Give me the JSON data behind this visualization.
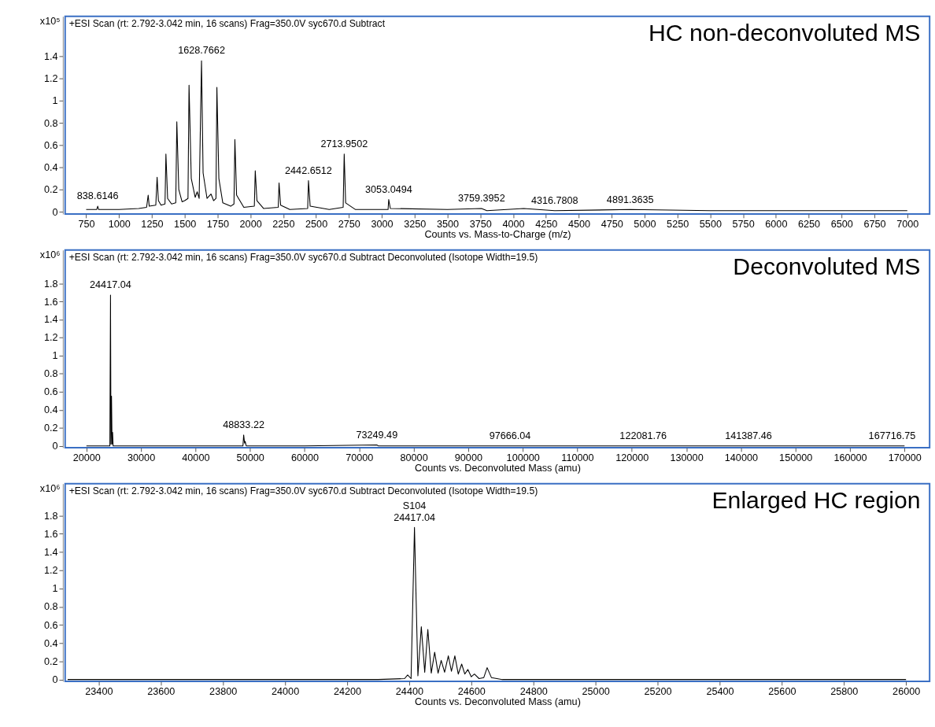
{
  "chart_data": [
    {
      "type": "line",
      "title": "HC non-deconvoluted MS",
      "subtitle": "+ESI Scan (rt: 2.792-3.042 min, 16 scans) Frag=350.0V syc670.d  Subtract",
      "xlabel": "Counts vs. Mass-to-Charge (m/z)",
      "ylabel": "x10⁵",
      "xlim": [
        590,
        7170
      ],
      "ylim": [
        -0.02,
        1.76
      ],
      "xticks": [
        750,
        1000,
        1250,
        1500,
        1750,
        2000,
        2250,
        2500,
        2750,
        3000,
        3250,
        3500,
        3750,
        4000,
        4250,
        4500,
        4750,
        5000,
        5250,
        5500,
        5750,
        6000,
        6250,
        6500,
        6750,
        7000
      ],
      "yticks": [
        0,
        0.2,
        0.4,
        0.6,
        0.8,
        1,
        1.2,
        1.4
      ],
      "series": [
        {
          "color": "#000000",
          "x": [
            750,
            830,
            838,
            845,
            1000,
            1150,
            1210,
            1222,
            1230,
            1280,
            1290,
            1300,
            1320,
            1350,
            1357,
            1370,
            1400,
            1432,
            1440,
            1455,
            1480,
            1500,
            1525,
            1533,
            1550,
            1580,
            1595,
            1610,
            1628,
            1640,
            1670,
            1700,
            1720,
            1738,
            1745,
            1760,
            1790,
            1850,
            1875,
            1882,
            1895,
            1950,
            2030,
            2037,
            2050,
            2100,
            2212,
            2218,
            2230,
            2300,
            2436,
            2442,
            2455,
            2600,
            2706,
            2714,
            2725,
            2800,
            3048,
            3053,
            3065,
            3500,
            3759,
            3800,
            4080,
            4316,
            4891,
            5500,
            7000
          ],
          "values": [
            0.02,
            0.02,
            0.05,
            0.02,
            0.02,
            0.03,
            0.04,
            0.15,
            0.05,
            0.06,
            0.31,
            0.1,
            0.06,
            0.07,
            0.52,
            0.12,
            0.07,
            0.08,
            0.81,
            0.2,
            0.09,
            0.1,
            0.12,
            1.14,
            0.3,
            0.13,
            0.18,
            0.12,
            1.36,
            0.35,
            0.12,
            0.16,
            0.1,
            0.12,
            1.12,
            0.3,
            0.08,
            0.05,
            0.07,
            0.65,
            0.15,
            0.04,
            0.05,
            0.37,
            0.1,
            0.03,
            0.04,
            0.26,
            0.06,
            0.02,
            0.03,
            0.28,
            0.05,
            0.02,
            0.04,
            0.52,
            0.08,
            0.02,
            0.02,
            0.11,
            0.03,
            0.02,
            0.03,
            0.01,
            0.03,
            0.01,
            0.02,
            0.01,
            0.01
          ]
        }
      ],
      "annotations": [
        {
          "text": "838.6146",
          "x": 838,
          "y": 0.05
        },
        {
          "text": "1628.7662",
          "x": 1628,
          "y": 1.36
        },
        {
          "text": "2442.6512",
          "x": 2442,
          "y": 0.28
        },
        {
          "text": "2713.9502",
          "x": 2714,
          "y": 0.52
        },
        {
          "text": "3053.0494",
          "x": 3053,
          "y": 0.11
        },
        {
          "text": "3759.3952",
          "x": 3759,
          "y": 0.03
        },
        {
          "text": "4316.7808",
          "x": 4316,
          "y": 0.01
        },
        {
          "text": "4891.3635",
          "x": 4891,
          "y": 0.02
        }
      ]
    },
    {
      "type": "line",
      "title": "Deconvoluted MS",
      "subtitle": "+ESI Scan (rt: 2.792-3.042 min, 16 scans) Frag=350.0V syc670.d  Subtract Deconvoluted (Isotope Width=19.5)",
      "xlabel": "Counts vs. Deconvoluted Mass (amu)",
      "ylabel": "x10⁶",
      "xlim": [
        16100,
        174600
      ],
      "ylim": [
        -0.02,
        2.17
      ],
      "xticks": [
        20000,
        30000,
        40000,
        50000,
        60000,
        70000,
        80000,
        90000,
        100000,
        110000,
        120000,
        130000,
        140000,
        150000,
        160000,
        170000
      ],
      "yticks": [
        0,
        0.2,
        0.4,
        0.6,
        0.8,
        1,
        1.2,
        1.4,
        1.6,
        1.8
      ],
      "series": [
        {
          "color": "#000000",
          "x": [
            20000,
            24300,
            24417,
            24500,
            24600,
            24700,
            24800,
            24900,
            30000,
            40000,
            48700,
            48833,
            49000,
            49100,
            49300,
            60000,
            73249,
            73500,
            97666,
            122081,
            141387,
            167716,
            170000
          ],
          "values": [
            0,
            0,
            1.67,
            0.02,
            0.55,
            0.02,
            0.15,
            0,
            0,
            0,
            0,
            0.12,
            0.03,
            0.05,
            0,
            0,
            0.01,
            0,
            0,
            0,
            0,
            0,
            0
          ]
        }
      ],
      "annotations": [
        {
          "text": "24417.04",
          "x": 24417,
          "y": 1.67
        },
        {
          "text": "48833.22",
          "x": 48833,
          "y": 0.12
        },
        {
          "text": "73249.49",
          "x": 73249,
          "y": 0.01
        },
        {
          "text": "97666.04",
          "x": 97666,
          "y": 0
        },
        {
          "text": "122081.76",
          "x": 122081,
          "y": 0
        },
        {
          "text": "141387.46",
          "x": 141387,
          "y": 0
        },
        {
          "text": "167716.75",
          "x": 167716,
          "y": 0
        }
      ]
    },
    {
      "type": "line",
      "title": "Enlarged HC region",
      "subtitle": "+ESI Scan (rt: 2.792-3.042 min, 16 scans) Frag=350.0V syc670.d  Subtract Deconvoluted (Isotope Width=19.5)",
      "xlabel": "Counts vs. Deconvoluted Mass (amu)",
      "ylabel": "x10⁶",
      "xlim": [
        23292,
        26076
      ],
      "ylim": [
        -0.02,
        2.15
      ],
      "xticks": [
        23400,
        23600,
        23800,
        24000,
        24200,
        24400,
        24600,
        24800,
        25000,
        25200,
        25400,
        25600,
        25800,
        26000
      ],
      "yticks": [
        0,
        0.2,
        0.4,
        0.6,
        0.8,
        1,
        1.2,
        1.4,
        1.6,
        1.8
      ],
      "series": [
        {
          "color": "#000000",
          "x": [
            23300,
            24300,
            24385,
            24395,
            24406,
            24417,
            24428,
            24439,
            24450,
            24460,
            24471,
            24482,
            24493,
            24503,
            24514,
            24526,
            24536,
            24547,
            24558,
            24569,
            24579,
            24589,
            24600,
            24610,
            24625,
            24640,
            24651,
            24665,
            24700,
            26000
          ],
          "values": [
            0,
            0,
            0.01,
            0.05,
            0.01,
            1.67,
            0.04,
            0.58,
            0.08,
            0.55,
            0.07,
            0.3,
            0.07,
            0.21,
            0.08,
            0.26,
            0.09,
            0.26,
            0.06,
            0.17,
            0.06,
            0.11,
            0.03,
            0.06,
            0.01,
            0.02,
            0.13,
            0.02,
            0,
            0
          ]
        }
      ],
      "annotations": [
        {
          "text": "24417.04",
          "x": 24417,
          "y": 1.67
        },
        {
          "text": "S104",
          "x": 24417,
          "y": 1.67
        }
      ]
    }
  ]
}
